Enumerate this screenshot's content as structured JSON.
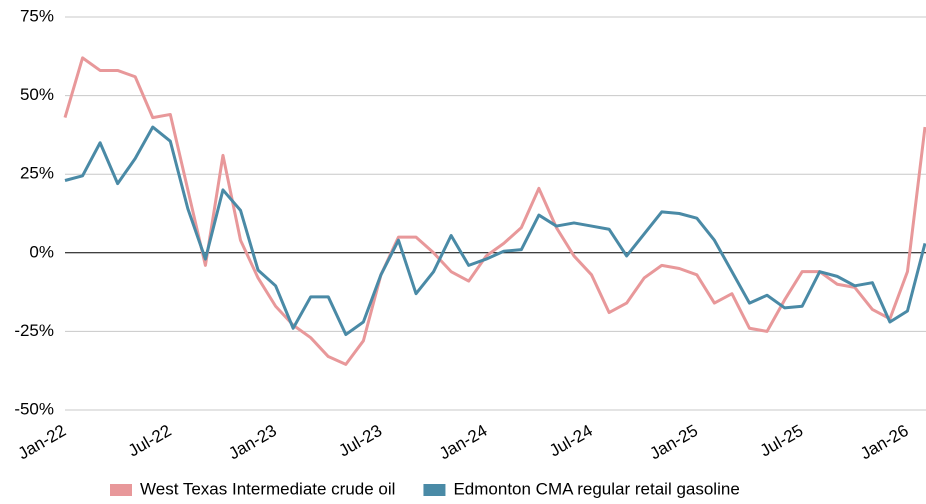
{
  "chart_data": {
    "type": "line",
    "categories": [
      "Jan-22",
      null,
      null,
      null,
      null,
      null,
      "Jul-22",
      null,
      null,
      null,
      null,
      null,
      "Jan-23",
      null,
      null,
      null,
      null,
      null,
      "Jul-23",
      null,
      null,
      null,
      null,
      null,
      "Jan-24",
      null,
      null,
      null,
      null,
      null,
      "Jul-24",
      null,
      null,
      null,
      null,
      null,
      "Jan-25",
      null,
      null,
      null,
      null,
      null,
      "Jul-25",
      null,
      null,
      null,
      null,
      null,
      "Jan-26",
      null
    ],
    "series": [
      {
        "name": "West Texas Intermediate crude oil",
        "color": "#e8989a",
        "values": [
          43,
          62,
          58,
          58,
          56,
          43,
          44,
          20,
          -4,
          31,
          4,
          -8,
          -17,
          -23,
          -27,
          -33,
          -35.5,
          -28,
          -7,
          5,
          5,
          0,
          -6,
          -9,
          -1,
          3,
          8,
          20.5,
          8,
          -1,
          -7,
          -19,
          -16,
          -8,
          -4,
          -5,
          -7,
          -16,
          -13,
          -24,
          -25,
          -15,
          -6,
          -6,
          -10,
          -11,
          -18,
          -21,
          -6,
          40
        ]
      },
      {
        "name": "Edmonton CMA regular retail gasoline",
        "color": "#4a8aa6",
        "values": [
          23,
          24.5,
          35,
          22,
          30,
          40,
          35.5,
          14,
          -2,
          20,
          13.5,
          -5.5,
          -10.5,
          -24,
          -14,
          -14,
          -26,
          -22,
          -7,
          4,
          -13,
          -6,
          5.5,
          -4,
          -2,
          0.5,
          1,
          12,
          8.5,
          9.5,
          8.5,
          7.5,
          -1,
          6,
          13,
          12.5,
          11,
          4,
          -6,
          -16,
          -13.5,
          -17.5,
          -17,
          -6,
          -7.5,
          -10.5,
          -9.5,
          -22,
          -18.5,
          3
        ]
      }
    ],
    "ylim": [
      -50,
      75
    ],
    "yticks": [
      {
        "value": -50,
        "label": "-50%"
      },
      {
        "value": -25,
        "label": "-25%"
      },
      {
        "value": 0,
        "label": "0%"
      },
      {
        "value": 25,
        "label": "25%"
      },
      {
        "value": 50,
        "label": "50%"
      },
      {
        "value": 75,
        "label": "75%"
      }
    ],
    "grid": true,
    "legend": "bottom"
  }
}
